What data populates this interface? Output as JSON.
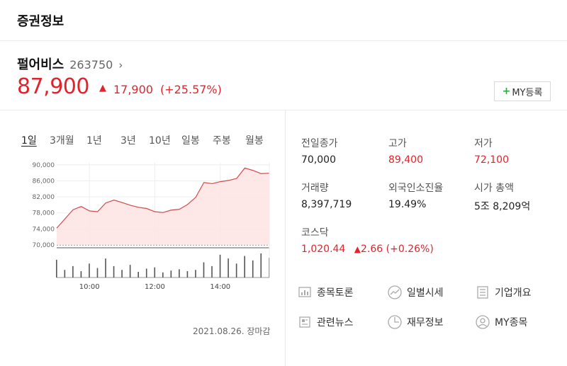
{
  "header": {
    "title": "증권정보"
  },
  "stock": {
    "name": "펄어비스",
    "code": "263750",
    "price": "87,900",
    "change": "17,900",
    "change_pct": "(+25.57%)"
  },
  "my_button": {
    "label": "MY등록"
  },
  "tabs": [
    "1일",
    "3개월",
    "1년",
    "3년",
    "10년",
    "일봉",
    "주봉",
    "월봉"
  ],
  "chart_data": {
    "type": "line",
    "title": "",
    "xlabel": "",
    "ylabel": "",
    "x_ticks": [
      "10:00",
      "12:00",
      "14:00"
    ],
    "y_ticks": [
      "70,000",
      "74,000",
      "78,000",
      "82,000",
      "86,000",
      "90,000"
    ],
    "ylim": [
      70000,
      90500
    ],
    "baseline": 70000,
    "series": [
      {
        "x": [
          "09:00",
          "09:15",
          "09:30",
          "09:45",
          "10:00",
          "10:15",
          "10:30",
          "10:45",
          "11:00",
          "11:15",
          "11:30",
          "11:45",
          "12:00",
          "12:15",
          "12:30",
          "12:45",
          "13:00",
          "13:15",
          "13:30",
          "13:45",
          "14:00",
          "14:15",
          "14:30",
          "14:45",
          "15:00",
          "15:15",
          "15:30"
        ],
        "values": [
          74200,
          76500,
          78800,
          79600,
          78500,
          78300,
          80500,
          81200,
          80600,
          79900,
          79400,
          79100,
          78300,
          78100,
          78700,
          78900,
          80100,
          81900,
          85600,
          85300,
          85800,
          86100,
          86600,
          89200,
          88600,
          87800,
          87900
        ]
      }
    ],
    "volume": [
      28,
      12,
      18,
      10,
      22,
      15,
      30,
      18,
      12,
      20,
      9,
      14,
      16,
      8,
      11,
      13,
      10,
      12,
      24,
      18,
      36,
      30,
      22,
      34,
      27,
      38,
      31
    ]
  },
  "date_note": "2021.08.26. 장마감",
  "info": {
    "prev_close_label": "전일종가",
    "prev_close": "70,000",
    "high_label": "고가",
    "high": "89,400",
    "low_label": "저가",
    "low": "72,100",
    "volume_label": "거래량",
    "volume": "8,397,719",
    "foreign_label": "외국인소진율",
    "foreign": "19.49%",
    "mcap_label": "시가 총액",
    "mcap": "5조 8,209억",
    "index_label": "코스닥",
    "index_value": "1,020.44",
    "index_change": "2.66 (+0.26%)"
  },
  "links": {
    "discussion": "종목토론",
    "daily_price": "일별시세",
    "company": "기업개요",
    "news": "관련뉴스",
    "finance": "재무정보",
    "my_stocks": "MY종목"
  },
  "colors": {
    "up": "#e1242b",
    "fill": "#fde3e3",
    "line": "#d14a4a",
    "bar": "#555555"
  },
  "icons": [
    "chart-bubble-icon",
    "trend-circle-icon",
    "list-doc-icon",
    "newspaper-icon",
    "pie-clock-icon",
    "user-circle-icon",
    "plus-icon",
    "up-triangle-icon"
  ]
}
